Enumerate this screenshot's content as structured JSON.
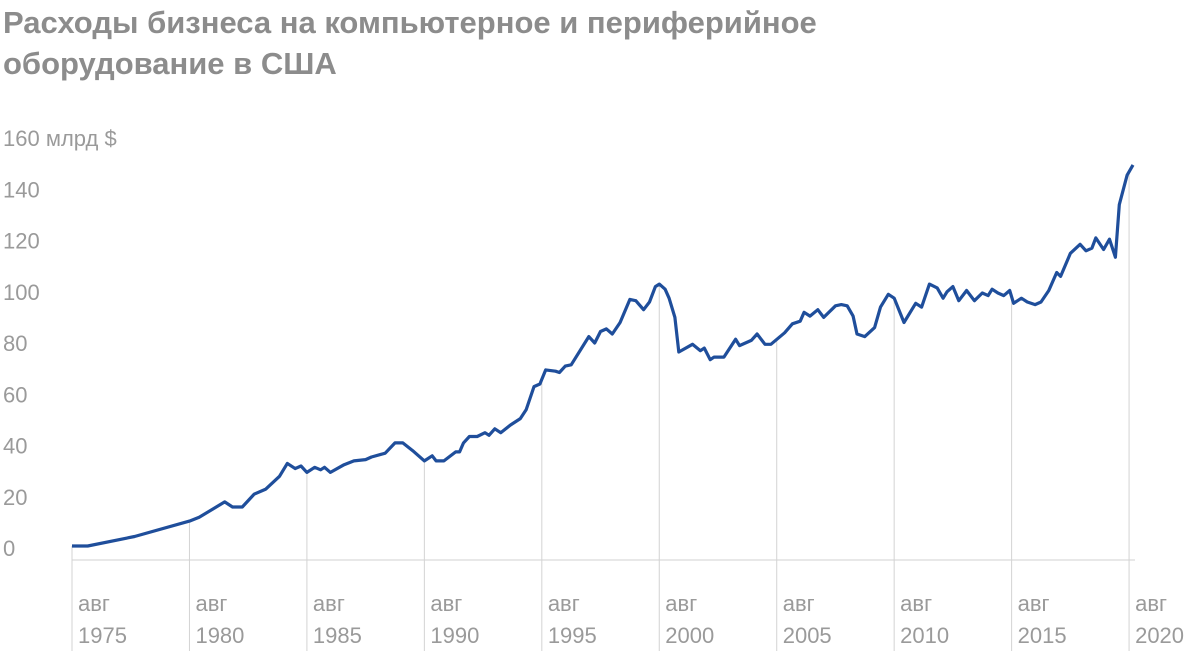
{
  "chart_data": {
    "type": "line",
    "title": "Расходы бизнеса на компьютерное и периферийное оборудование в США",
    "x": [
      "1975-08",
      "1976-04",
      "1978-04",
      "1980-08",
      "1981-01",
      "1982-02",
      "1982-06",
      "1982-11",
      "1983-05",
      "1983-11",
      "1984-06",
      "1984-10",
      "1985-02",
      "1985-05",
      "1985-08",
      "1985-12",
      "1986-03",
      "1986-05",
      "1986-08",
      "1987-03",
      "1987-08",
      "1988-02",
      "1988-05",
      "1988-12",
      "1989-05",
      "1989-09",
      "1990-02",
      "1990-08",
      "1990-12",
      "1991-02",
      "1991-06",
      "1991-12",
      "1992-02",
      "1992-04",
      "1992-07",
      "1992-11",
      "1993-03",
      "1993-05",
      "1993-08",
      "1993-11",
      "1994-04",
      "1994-09",
      "1994-12",
      "1995-04",
      "1995-07",
      "1995-10",
      "1996-03",
      "1996-05",
      "1996-08",
      "1996-11",
      "1997-08",
      "1997-11",
      "1998-02",
      "1998-05",
      "1998-08",
      "1998-12",
      "1999-05",
      "1999-08",
      "1999-12",
      "2000-03",
      "2000-06",
      "2000-08",
      "2000-11",
      "2001-01",
      "2001-04",
      "2001-06",
      "2002-01",
      "2002-05",
      "2002-07",
      "2002-10",
      "2002-12",
      "2003-05",
      "2003-11",
      "2004-01",
      "2004-07",
      "2004-10",
      "2005-02",
      "2005-05",
      "2005-12",
      "2006-04",
      "2006-08",
      "2006-10",
      "2007-01",
      "2007-05",
      "2007-08",
      "2008-02",
      "2008-05",
      "2008-08",
      "2008-11",
      "2009-01",
      "2009-05",
      "2009-10",
      "2010-01",
      "2010-05",
      "2010-08",
      "2011-01",
      "2011-05",
      "2011-07",
      "2011-10",
      "2012-02",
      "2012-06",
      "2012-09",
      "2012-11",
      "2013-02",
      "2013-05",
      "2013-09",
      "2014-01",
      "2014-05",
      "2014-08",
      "2014-10",
      "2015-01",
      "2015-04",
      "2015-07",
      "2015-09",
      "2016-01",
      "2016-04",
      "2016-08",
      "2016-11",
      "2017-03",
      "2017-07",
      "2017-09",
      "2018-02",
      "2018-07",
      "2018-10",
      "2019-01",
      "2019-03",
      "2019-07",
      "2019-10",
      "2020-01",
      "2020-03",
      "2020-07",
      "2020-10"
    ],
    "series": [
      {
        "color": "#1f4e9b",
        "values": [
          0.8,
          0.8,
          4.5,
          10.5,
          12,
          18,
          16,
          16,
          21,
          23,
          28,
          33,
          31,
          32,
          29.5,
          31.5,
          30.5,
          31.5,
          29.5,
          32.5,
          34,
          34.5,
          35.5,
          37,
          41,
          41,
          38,
          34,
          36,
          34,
          34,
          37.5,
          37.5,
          41,
          43.5,
          43.5,
          45,
          44,
          46.5,
          45,
          48,
          50.5,
          54,
          63,
          64,
          69.5,
          69,
          68.5,
          71,
          71.5,
          82.5,
          80,
          84.5,
          85.5,
          83.5,
          88,
          97,
          96.5,
          93,
          96,
          102,
          103,
          101,
          97.5,
          90,
          76.5,
          79.5,
          77,
          78,
          73.5,
          74.5,
          74.5,
          81.5,
          79,
          81,
          83.5,
          79.5,
          79.5,
          84,
          87.5,
          88.5,
          92,
          90.5,
          93,
          90,
          94.5,
          95,
          94.5,
          90.5,
          83.5,
          82.5,
          86,
          94,
          99,
          97.5,
          88,
          93,
          95.5,
          94,
          103,
          101.5,
          97.5,
          100,
          102,
          96.5,
          100.5,
          96.5,
          99.5,
          98.5,
          101,
          99.5,
          98.5,
          100.5,
          95.5,
          97.5,
          96,
          95,
          96,
          100.5,
          107.5,
          106,
          115,
          118.5,
          116,
          117,
          121,
          116.5,
          120.5,
          113.5,
          134,
          145.5,
          149.5
        ]
      }
    ],
    "xlim": [
      "1975-08",
      "2020-10"
    ],
    "xticks": [
      {
        "value": "1975-08",
        "label": "авг 1975"
      },
      {
        "value": "1980-08",
        "label": "авг 1980"
      },
      {
        "value": "1985-08",
        "label": "авг 1985"
      },
      {
        "value": "1990-08",
        "label": "авг 1990"
      },
      {
        "value": "1995-08",
        "label": "авг 1995"
      },
      {
        "value": "2000-08",
        "label": "авг 2000"
      },
      {
        "value": "2005-08",
        "label": "авг 2005"
      },
      {
        "value": "2010-08",
        "label": "авг 2010"
      },
      {
        "value": "2015-08",
        "label": "авг 2015"
      },
      {
        "value": "2020-08",
        "label": "авг 2020"
      }
    ],
    "ylim": [
      0,
      160
    ],
    "yticks": [
      0,
      20,
      40,
      60,
      80,
      100,
      120,
      140,
      {
        "value": 160,
        "label": "160 млрд $"
      }
    ]
  }
}
